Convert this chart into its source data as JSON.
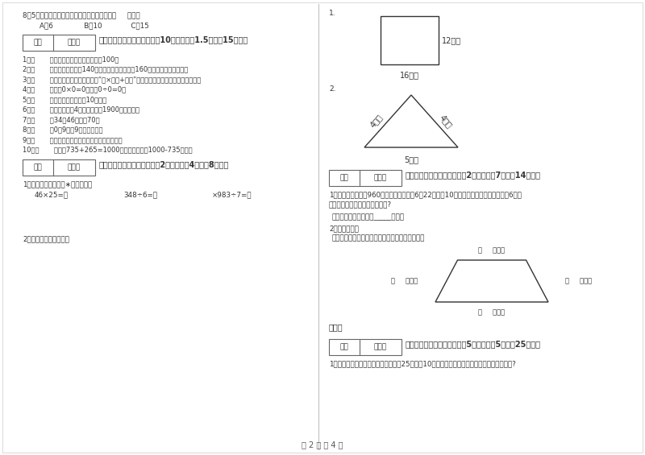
{
  "bg_color": "#ffffff",
  "page_num": "第 2 页 共 4 页",
  "left_col": {
    "q8": "8．5名同学打乒乓球，每两人打一场，共要打（     ）场。",
    "q8_opts": "    A、6              B、10             C、15",
    "section3_title": "三、仔细推敲，正确判断（共10小题，每题1.5分，共15分）。",
    "items": [
      "1．（       ）两个面积单位之间的进率是100。",
      "2．（       ）一条河平均水深140厘米，一匹小马身高是160厘米，它肯定能通过。",
      "3．（       ）有余数除法的验算方法是“商×除数+余数”，看得到的结果是否与被除数相等。",
      "4．（       ）因为0×0=0，所以0÷0=0。",
      "5．（       ）小明家客厅面积是10公顿。",
      "6．（       ）公元年份是4的倍数，所以1900年是闰年。",
      "7．（       ）34与46的和是70。",
      "8．（       ）0．9里有9个十分之一。",
      "9．（       ）长方形的周长就是它四条边长度的和。",
      "10．（       ）根据735+265=1000，可以直接写出1000-735的差。"
    ],
    "section4_title": "四、看清题目，细心计算（共2小题，每题4分，共8分）。",
    "calc_intro": "1．列竖式计算。（带∗的要验算）",
    "calc_items": [
      "46×25=＊",
      "348÷6=＊",
      "×983÷7=＊"
    ],
    "perimeter_q": "2．求下面图形的周长。"
  },
  "right_col": {
    "q1_label": "1.",
    "rect_w_label": "12厘米",
    "rect_h_label": "16厘米",
    "q2_label": "2.",
    "tri_left": "4分米",
    "tri_right": "4分米",
    "tri_bottom": "5分米",
    "section5_title": "五、认真思考，综合能力（共2小题，每题7分，共14分）。",
    "p1_line1": "1．甲乙两城铁路长960千米，一列客车于6月22日上午10时从甲城开往乙城，当日晚上6时到",
    "p1_line2": "达，这列火车每小时行多少千米?",
    "ans_text": "答：这列火车每小时有_____千米。",
    "p2_text": "2．动手操作。",
    "measure_text": "量出每条边的长度，以毫米为单位，并计算周长。",
    "top_label": "（     ）毫米",
    "left_label": "（     ）毫米",
    "right_label": "（     ）毫米",
    "bottom_label": "（     ）毫米",
    "perimeter_label": "周长：",
    "section6_title": "六、活用知识，解决问题（共5小题，每题5分，共25分）。",
    "s6_q1": "1．王大妈沿着一条河用篱箆围一个长25米，切10米的长方形菜地，最少需要准备多长的篱箆?"
  },
  "score_box_labels": [
    "得分",
    "评卷人"
  ]
}
